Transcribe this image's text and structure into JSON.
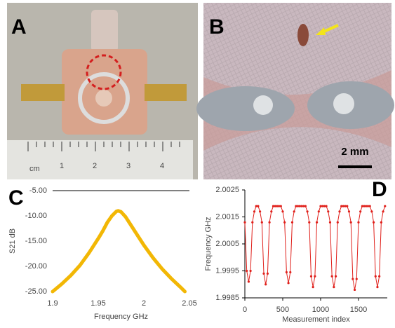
{
  "panels": {
    "A": {
      "label": "A",
      "ruler_labels": [
        "cm",
        "1",
        "2",
        "3",
        "4"
      ]
    },
    "B": {
      "label": "B",
      "scale_bar": "2 mm"
    }
  },
  "chart_data": [
    {
      "type": "line",
      "label": "C",
      "x_label": "Frequency GHz",
      "y_label": "S21 dB",
      "color": "#f2b705",
      "x": [
        1.9,
        1.91,
        1.92,
        1.93,
        1.94,
        1.95,
        1.955,
        1.96,
        1.965,
        1.97,
        1.972,
        1.975,
        1.98,
        1.985,
        1.99,
        2.0,
        2.01,
        2.02,
        2.03,
        2.04,
        2.045
      ],
      "values": [
        -25,
        -23.5,
        -21.8,
        -19.8,
        -17.3,
        -14.5,
        -13,
        -11.3,
        -10,
        -9.1,
        -9,
        -9.2,
        -10.2,
        -11.6,
        -13,
        -15.8,
        -18.3,
        -20.5,
        -22.4,
        -24.1,
        -25
      ],
      "xlim": [
        1.9,
        2.05
      ],
      "xticks": [
        1.9,
        1.95,
        2,
        2.05
      ],
      "ylim": [
        -25,
        -5
      ],
      "yticks": [
        {
          "value": -5,
          "label": "-5.00"
        },
        {
          "value": -10,
          "label": "-10.00"
        },
        {
          "value": -15,
          "label": "-15.00"
        },
        {
          "value": -20,
          "label": "-20.00"
        },
        {
          "value": -25,
          "label": "-25.00"
        }
      ]
    },
    {
      "type": "line",
      "markers": true,
      "label": "D",
      "x_label": "Measurement index",
      "y_label": "Frequency GHz",
      "color": "#e0201b",
      "x": [
        0,
        25,
        50,
        75,
        100,
        125,
        150,
        175,
        200,
        225,
        250,
        275,
        300,
        325,
        350,
        375,
        400,
        425,
        450,
        475,
        500,
        525,
        550,
        575,
        600,
        625,
        650,
        675,
        700,
        725,
        750,
        775,
        800,
        825,
        850,
        875,
        900,
        925,
        950,
        975,
        1000,
        1025,
        1050,
        1075,
        1100,
        1125,
        1150,
        1175,
        1200,
        1225,
        1250,
        1275,
        1300,
        1325,
        1350,
        1375,
        1400,
        1425,
        1450,
        1475,
        1500,
        1525,
        1550,
        1575,
        1600,
        1625,
        1650,
        1675,
        1700,
        1725,
        1750,
        1775,
        1800,
        1825,
        1850
      ],
      "values": [
        2.0013,
        1.9995,
        1.9991,
        1.9995,
        2.0013,
        2.0017,
        2.0019,
        2.0019,
        2.0017,
        2.0013,
        1.9994,
        1.999,
        1.9994,
        2.0013,
        2.0017,
        2.0019,
        2.0019,
        2.0019,
        2.0019,
        2.0019,
        2.0017,
        2.0013,
        1.99945,
        1.99905,
        1.99945,
        2.0013,
        2.0017,
        2.0019,
        2.0019,
        2.0019,
        2.0019,
        2.0019,
        2.0019,
        2.0017,
        2.0013,
        1.9993,
        1.9989,
        1.9993,
        2.0013,
        2.0017,
        2.0019,
        2.0019,
        2.0019,
        2.0019,
        2.0017,
        2.0013,
        1.9993,
        1.9989,
        1.9993,
        2.0013,
        2.0017,
        2.0019,
        2.0019,
        2.0019,
        2.0019,
        2.0017,
        2.0013,
        1.9992,
        1.9988,
        1.9992,
        2.0013,
        2.0017,
        2.0019,
        2.0019,
        2.0019,
        2.0019,
        2.0019,
        2.0017,
        2.0013,
        1.9993,
        1.9989,
        1.9993,
        2.0013,
        2.0017,
        2.0019
      ],
      "xlim": [
        0,
        1880
      ],
      "xticks": [
        0,
        500,
        1000,
        1500
      ],
      "ylim": [
        1.9985,
        2.0025
      ],
      "yticks": [
        2.0025,
        2.0015,
        2.0005,
        1.9995,
        1.9985
      ]
    }
  ]
}
